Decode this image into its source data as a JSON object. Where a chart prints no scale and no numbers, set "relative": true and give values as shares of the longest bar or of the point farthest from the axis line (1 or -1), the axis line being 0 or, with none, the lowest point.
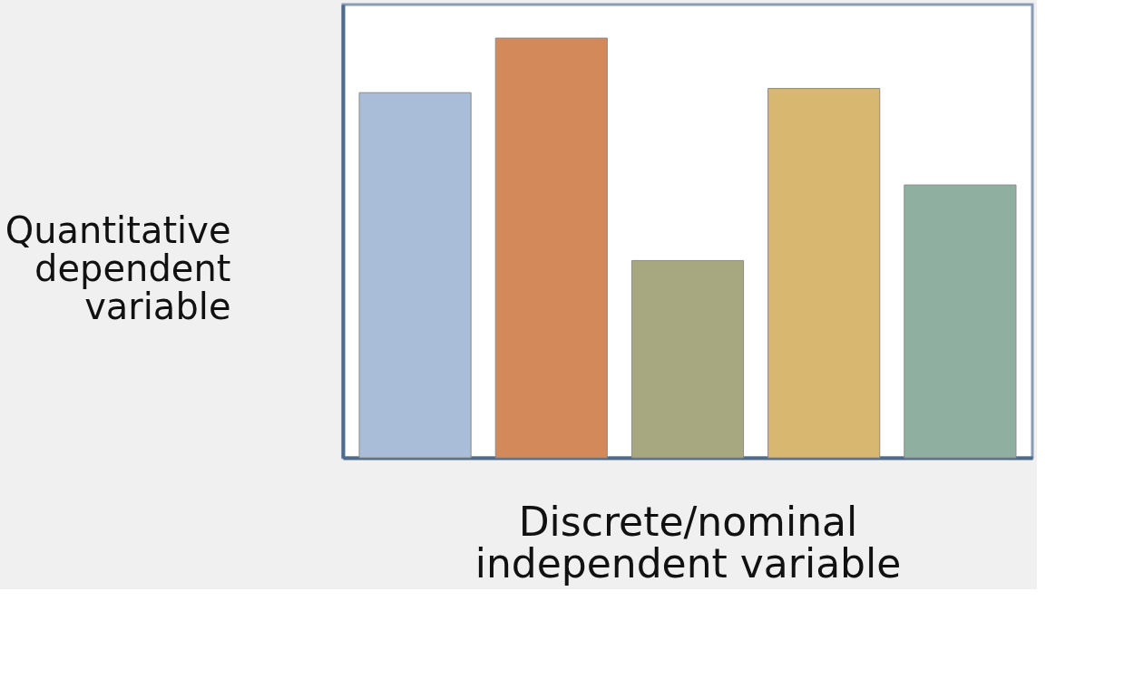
{
  "chart_data": {
    "type": "bar",
    "relative": true,
    "categories": [
      null,
      null,
      null,
      null,
      null
    ],
    "values": [
      0.87,
      1.0,
      0.47,
      0.88,
      0.65
    ],
    "colors": [
      "#a9bcd8",
      "#d4895a",
      "#a8a880",
      "#d8b870",
      "#8fb0a0"
    ],
    "xlabel": "Discrete/nominal independent variable",
    "ylabel": "Quantitative dependent variable",
    "grid": false,
    "legend": false
  }
}
